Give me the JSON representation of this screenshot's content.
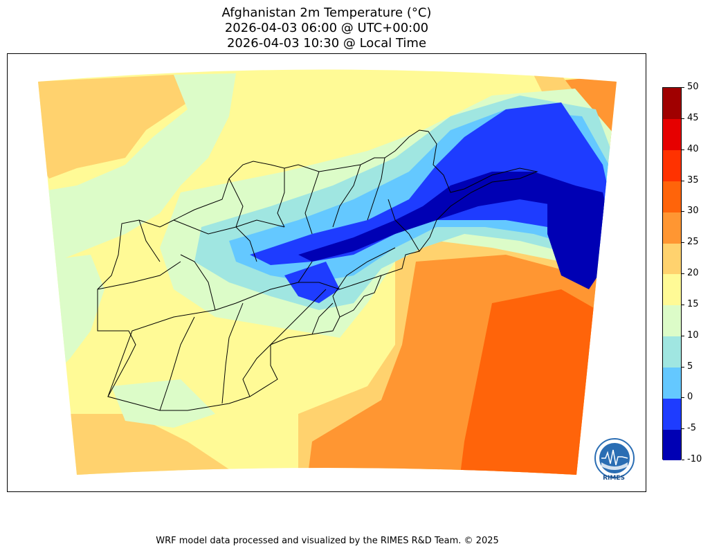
{
  "title": {
    "line1": "Afghanistan 2m Temperature (°C)",
    "line2": "2026-04-03 06:00 @ UTC+00:00",
    "line3": "2026-04-03 10:30 @ Local Time"
  },
  "colorbar": {
    "ticks": [
      "50",
      "45",
      "40",
      "35",
      "30",
      "25",
      "20",
      "15",
      "10",
      "5",
      "0",
      "-5",
      "-10"
    ],
    "levels": [
      {
        "from": -10,
        "to": -5,
        "color": "#0000b4"
      },
      {
        "from": -5,
        "to": 0,
        "color": "#1e3cff"
      },
      {
        "from": 0,
        "to": 5,
        "color": "#64c8ff"
      },
      {
        "from": 5,
        "to": 10,
        "color": "#a0e6e1"
      },
      {
        "from": 10,
        "to": 15,
        "color": "#dcfcc8"
      },
      {
        "from": 15,
        "to": 20,
        "color": "#fffa96"
      },
      {
        "from": 20,
        "to": 25,
        "color": "#ffd26e"
      },
      {
        "from": 25,
        "to": 30,
        "color": "#ff9632"
      },
      {
        "from": 30,
        "to": 35,
        "color": "#ff640a"
      },
      {
        "from": 35,
        "to": 40,
        "color": "#ff3200"
      },
      {
        "from": 40,
        "to": 45,
        "color": "#e60000"
      },
      {
        "from": 45,
        "to": 50,
        "color": "#a00000"
      }
    ]
  },
  "logo": {
    "text": "RIMES"
  },
  "footer": "WRF model data processed and visualized by the RIMES R&D Team. © 2025"
}
